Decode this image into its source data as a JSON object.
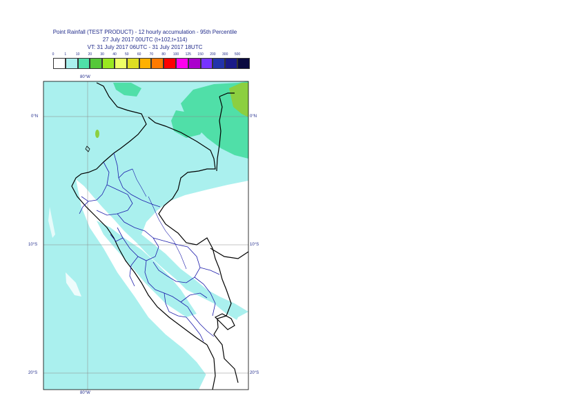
{
  "title": {
    "line1": "Point Rainfall (TEST PRODUCT) - 12 hourly accumulation - 95th Percentile",
    "line2": "27 July 2017 00UTC (t+102,t+114)",
    "line3": "VT: 31 July 2017 06UTC - 31 July 2017 18UTC"
  },
  "legend": {
    "labels": [
      "0",
      "1",
      "10",
      "20",
      "30",
      "40",
      "50",
      "60",
      "70",
      "80",
      "100",
      "125",
      "150",
      "200",
      "300",
      "500"
    ],
    "colors": [
      "#ffffff",
      "#aaf0ee",
      "#50dfa8",
      "#55c83a",
      "#99e820",
      "#eeff66",
      "#dddd22",
      "#ffb000",
      "#ff7a00",
      "#ff0000",
      "#ff00ee",
      "#aa00cc",
      "#7733ff",
      "#2233aa",
      "#1a1a88",
      "#0a0a40"
    ]
  },
  "grid": {
    "lon_top": "80°W",
    "lon_bottom": "80°W",
    "lat_left": [
      "0°N",
      "10°S",
      "20°S"
    ],
    "lat_right": [
      "0°N",
      "10°S",
      "20°S"
    ]
  },
  "colors": {
    "cyan": "#aaf0ee",
    "teal": "#50dfa8",
    "green": "#8ccf40",
    "border": "#000000",
    "admin": "#1a1aaa"
  }
}
